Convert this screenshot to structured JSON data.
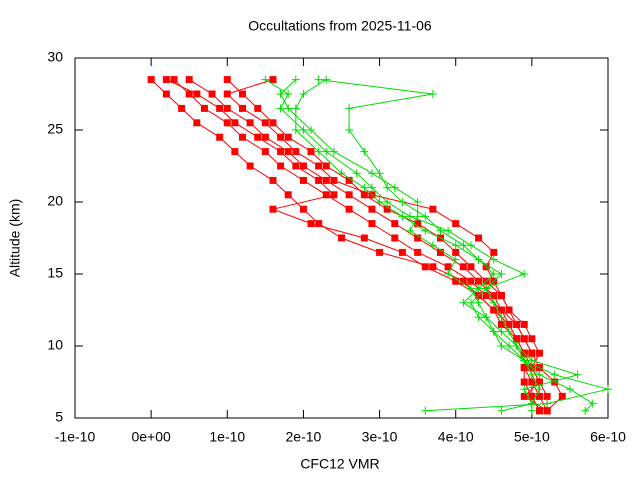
{
  "chart_data": {
    "type": "line",
    "title": "Occultations from 2025-11-06",
    "xlabel": "CFC12 VMR",
    "ylabel": "Altitude (km)",
    "xlim": [
      -1e-10,
      6e-10
    ],
    "ylim": [
      5,
      30
    ],
    "xticks": [
      {
        "value": -1e-10,
        "label": "-1e-10"
      },
      {
        "value": 0,
        "label": "0e+00"
      },
      {
        "value": 1e-10,
        "label": "1e-10"
      },
      {
        "value": 2e-10,
        "label": "2e-10"
      },
      {
        "value": 3e-10,
        "label": "3e-10"
      },
      {
        "value": 4e-10,
        "label": "4e-10"
      },
      {
        "value": 5e-10,
        "label": "5e-10"
      },
      {
        "value": 6e-10,
        "label": "6e-10"
      }
    ],
    "yticks": [
      5,
      10,
      15,
      20,
      25,
      30
    ],
    "series": [
      {
        "color": "#ff0000",
        "marker": "square",
        "x": [
          0.0,
          2e-11,
          4e-11,
          6e-11,
          9e-11,
          1.1e-10,
          1.3e-10,
          1.6e-10,
          1.8e-10,
          2e-10,
          2.2e-10,
          2.5e-10,
          3e-10,
          3.7e-10,
          4.1e-10,
          4.3e-10,
          4.5e-10,
          4.7e-10,
          4.8e-10,
          4.9e-10,
          5e-10,
          5e-10,
          5e-10,
          5.1e-10
        ],
        "values": [
          28.5,
          27.5,
          26.5,
          25.5,
          24.5,
          23.5,
          22.5,
          21.5,
          20.5,
          19.5,
          18.5,
          17.5,
          16.5,
          15.5,
          14.5,
          13.5,
          12.5,
          11.5,
          10.5,
          9.5,
          8.5,
          7.5,
          6.5,
          5.5
        ]
      },
      {
        "color": "#ff0000",
        "marker": "square",
        "x": [
          3e-11,
          5e-11,
          7e-11,
          1e-10,
          1.2e-10,
          1.5e-10,
          1.7e-10,
          2e-10,
          2.3e-10,
          2.6e-10,
          2.9e-10,
          3.2e-10,
          3.5e-10,
          3.9e-10,
          4.2e-10,
          4.4e-10,
          4.6e-10,
          4.7e-10,
          4.8e-10,
          4.9e-10,
          4.9e-10,
          5e-10,
          5.1e-10,
          5.2e-10
        ],
        "values": [
          28.5,
          27.5,
          26.5,
          25.5,
          24.5,
          23.5,
          22.5,
          21.5,
          20.5,
          19.5,
          18.5,
          17.5,
          16.5,
          15.5,
          14.5,
          13.5,
          12.5,
          11.5,
          10.5,
          9.5,
          8.5,
          7.5,
          6.5,
          5.5
        ]
      },
      {
        "color": "#ff0000",
        "marker": "square",
        "x": [
          5e-11,
          8e-11,
          1e-10,
          1.3e-10,
          1.5e-10,
          1.8e-10,
          2e-10,
          2.3e-10,
          2.6e-10,
          2.9e-10,
          3.2e-10,
          3.5e-10,
          3.8e-10,
          4.1e-10,
          4.3e-10,
          4.5e-10,
          4.6e-10,
          4.8e-10,
          4.9e-10,
          5e-10,
          5e-10,
          5.1e-10,
          5.2e-10,
          5.2e-10
        ],
        "values": [
          28.5,
          27.5,
          26.5,
          25.5,
          24.5,
          23.5,
          22.5,
          21.5,
          20.5,
          19.5,
          18.5,
          17.5,
          16.5,
          15.5,
          14.5,
          13.5,
          12.5,
          11.5,
          10.5,
          9.5,
          8.5,
          7.5,
          6.5,
          5.5
        ]
      },
      {
        "color": "#ff0000",
        "marker": "square",
        "x": [
          1e-10,
          1.2e-10,
          1.4e-10,
          1.6e-10,
          1.8e-10,
          2.1e-10,
          2.3e-10,
          2.6e-10,
          2.8e-10,
          3.1e-10,
          3.5e-10,
          3.8e-10,
          4e-10,
          4.2e-10,
          4.4e-10,
          4.6e-10,
          4.7e-10,
          4.8e-10,
          4.9e-10,
          5e-10,
          5.1e-10,
          5.3e-10,
          5.4e-10,
          5.2e-10
        ],
        "values": [
          28.5,
          27.5,
          26.5,
          25.5,
          24.5,
          23.5,
          22.5,
          21.5,
          20.5,
          19.5,
          18.5,
          17.5,
          16.5,
          15.5,
          14.5,
          13.5,
          12.5,
          11.5,
          10.5,
          9.5,
          8.5,
          7.5,
          6.5,
          5.5
        ]
      },
      {
        "color": "#ff0000",
        "marker": "square",
        "x": [
          2e-11,
          6e-11,
          9e-11,
          1.1e-10,
          1.4e-10,
          1.7e-10,
          1.9e-10,
          2.2e-10,
          2.4e-10,
          1.6e-10,
          2.1e-10,
          2.8e-10,
          3.3e-10,
          3.6e-10,
          4e-10,
          4.3e-10,
          4.5e-10,
          4.6e-10,
          4.8e-10,
          4.9e-10,
          4.9e-10,
          4.9e-10,
          5e-10,
          5.1e-10
        ],
        "values": [
          28.5,
          27.5,
          26.5,
          25.5,
          24.5,
          23.5,
          22.5,
          21.5,
          20.5,
          19.5,
          18.5,
          17.5,
          16.5,
          15.5,
          14.5,
          13.5,
          12.5,
          11.5,
          10.5,
          9.5,
          8.5,
          7.5,
          6.5,
          5.5
        ]
      },
      {
        "color": "#ff0000",
        "marker": "square",
        "x": [
          1.6e-10,
          1e-10,
          1.2e-10,
          1.5e-10,
          1.7e-10,
          1.9e-10,
          2.2e-10,
          2.4e-10,
          2.9e-10,
          3.7e-10,
          4e-10,
          4.3e-10,
          4.5e-10,
          4.4e-10,
          4.5e-10,
          4.6e-10,
          4.7e-10,
          4.9e-10,
          5e-10,
          5.1e-10,
          5e-10,
          5.1e-10,
          4.9e-10,
          5.2e-10
        ],
        "values": [
          28.5,
          27.5,
          26.5,
          25.5,
          24.5,
          23.5,
          22.5,
          21.5,
          20.5,
          19.5,
          18.5,
          17.5,
          16.5,
          15.5,
          14.5,
          13.5,
          12.5,
          11.5,
          10.5,
          9.5,
          8.5,
          7.5,
          6.5,
          5.5
        ]
      },
      {
        "color": "#00dd00",
        "marker": "plus",
        "x": [
          2.3e-10,
          2e-10,
          1.9e-10,
          1.9e-10,
          2.2e-10,
          2.5e-10,
          2.8e-10,
          3e-10,
          3.3e-10,
          3.6e-10,
          4e-10,
          4.3e-10,
          4.6e-10,
          4.4e-10,
          4.5e-10,
          4.6e-10,
          4.7e-10,
          4.8e-10,
          4.9e-10,
          5.1e-10,
          5.5e-10,
          5.8e-10,
          5.7e-10
        ],
        "values": [
          28.5,
          27.5,
          26.5,
          25,
          23.5,
          22,
          21,
          20,
          19,
          18,
          17,
          16,
          15,
          14,
          13,
          12,
          11,
          10,
          9,
          8,
          7,
          6,
          5.5
        ]
      },
      {
        "color": "#00dd00",
        "marker": "plus",
        "x": [
          1.5e-10,
          1.8e-10,
          1.7e-10,
          2e-10,
          2.3e-10,
          2.7e-10,
          2.9e-10,
          3.1e-10,
          3.4e-10,
          3.9e-10,
          4.2e-10,
          4.5e-10,
          4.9e-10,
          4.4e-10,
          4.2e-10,
          4.3e-10,
          4.5e-10,
          4.7e-10,
          4.9e-10,
          5.3e-10,
          6e-10,
          5.2e-10,
          3.6e-10
        ],
        "values": [
          28.5,
          27.5,
          26.5,
          25,
          23.5,
          22,
          21,
          20,
          19,
          18,
          17,
          16,
          15,
          14,
          13,
          12,
          11,
          10,
          9,
          8,
          7,
          6,
          5.5
        ]
      },
      {
        "color": "#00dd00",
        "marker": "plus",
        "x": [
          2.2e-10,
          3.7e-10,
          2.6e-10,
          2.6e-10,
          2.8e-10,
          3e-10,
          3.1e-10,
          3.3e-10,
          3.6e-10,
          3.8e-10,
          4.1e-10,
          4.3e-10,
          4.5e-10,
          4.3e-10,
          4.1e-10,
          4.4e-10,
          4.6e-10,
          4.8e-10,
          5e-10,
          5.6e-10,
          4.9e-10,
          5e-10,
          4.6e-10
        ],
        "values": [
          28.5,
          27.5,
          26.5,
          25,
          23.5,
          22,
          21,
          20,
          19,
          18,
          17,
          16,
          15,
          14,
          13,
          12,
          11,
          10,
          9,
          8,
          7,
          6,
          5.5
        ]
      },
      {
        "color": "#00dd00",
        "marker": "plus",
        "x": [
          1.9e-10,
          1.7e-10,
          1.8e-10,
          2.1e-10,
          2.4e-10,
          2.9e-10,
          3.2e-10,
          3.5e-10,
          3.5e-10,
          3.4e-10,
          3.7e-10,
          4e-10,
          3.9e-10,
          4.2e-10,
          4.3e-10,
          4.4e-10,
          4.5e-10,
          4.6e-10,
          4.9e-10,
          5e-10,
          5.1e-10,
          5e-10,
          5e-10
        ],
        "values": [
          28.5,
          27.5,
          26.5,
          25,
          23.5,
          22,
          21,
          20,
          19,
          18,
          17,
          16,
          15,
          14,
          13,
          12,
          11,
          10,
          9,
          8,
          7,
          6,
          5.5
        ]
      }
    ]
  }
}
